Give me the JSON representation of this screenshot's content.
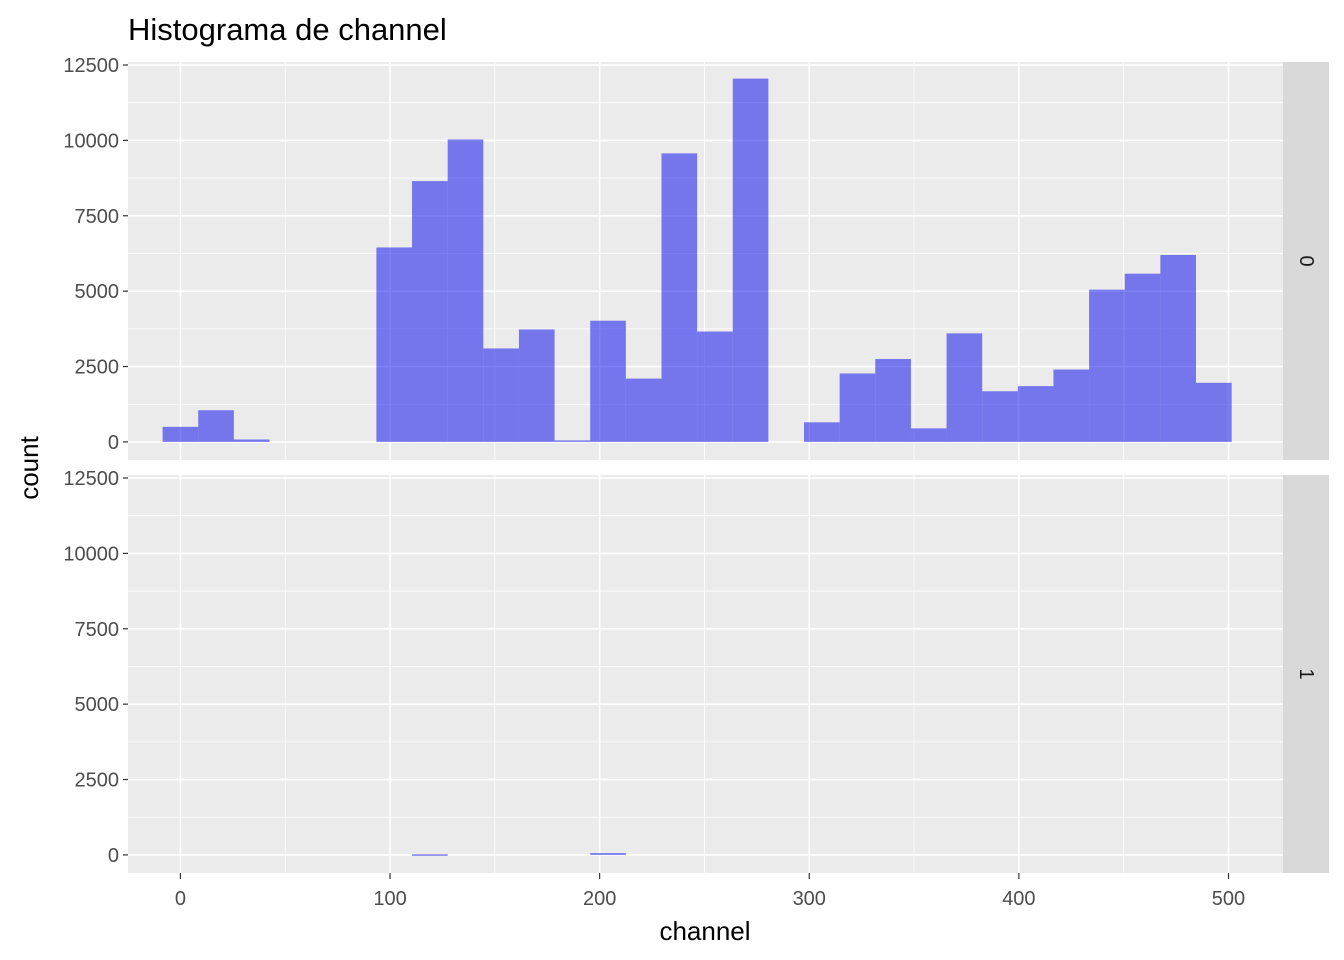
{
  "chart_data": {
    "type": "bar",
    "title": "Histograma de channel",
    "xlabel": "channel",
    "ylabel": "count",
    "xlim": [
      -25,
      526
    ],
    "ylim": [
      -600,
      12600
    ],
    "x_ticks": [
      0,
      100,
      200,
      300,
      400,
      500
    ],
    "y_ticks": [
      0,
      2500,
      5000,
      7500,
      10000,
      12500
    ],
    "bin_width": 17,
    "bar_color": "#0000ee",
    "bar_opacity": 0.5,
    "panel_background": "#ebebeb",
    "strip_background": "#d9d9d9",
    "grid": true,
    "facets": [
      {
        "label": "0",
        "bins": [
          {
            "x": 0,
            "count": 500
          },
          {
            "x": 17,
            "count": 1050
          },
          {
            "x": 34,
            "count": 80
          },
          {
            "x": 102,
            "count": 6450
          },
          {
            "x": 119,
            "count": 8650
          },
          {
            "x": 136,
            "count": 10030
          },
          {
            "x": 153,
            "count": 3100
          },
          {
            "x": 170,
            "count": 3730
          },
          {
            "x": 187,
            "count": 50
          },
          {
            "x": 204,
            "count": 4020
          },
          {
            "x": 221,
            "count": 2100
          },
          {
            "x": 238,
            "count": 9570
          },
          {
            "x": 255,
            "count": 3660
          },
          {
            "x": 272,
            "count": 12050
          },
          {
            "x": 306,
            "count": 650
          },
          {
            "x": 323,
            "count": 2270
          },
          {
            "x": 340,
            "count": 2750
          },
          {
            "x": 357,
            "count": 450
          },
          {
            "x": 374,
            "count": 3600
          },
          {
            "x": 391,
            "count": 1680
          },
          {
            "x": 408,
            "count": 1850
          },
          {
            "x": 425,
            "count": 2400
          },
          {
            "x": 442,
            "count": 5050
          },
          {
            "x": 459,
            "count": 5580
          },
          {
            "x": 476,
            "count": 6200
          },
          {
            "x": 493,
            "count": 1960
          }
        ]
      },
      {
        "label": "1",
        "bins": [
          {
            "x": 119,
            "count": 20
          },
          {
            "x": 204,
            "count": 60
          }
        ]
      }
    ]
  }
}
